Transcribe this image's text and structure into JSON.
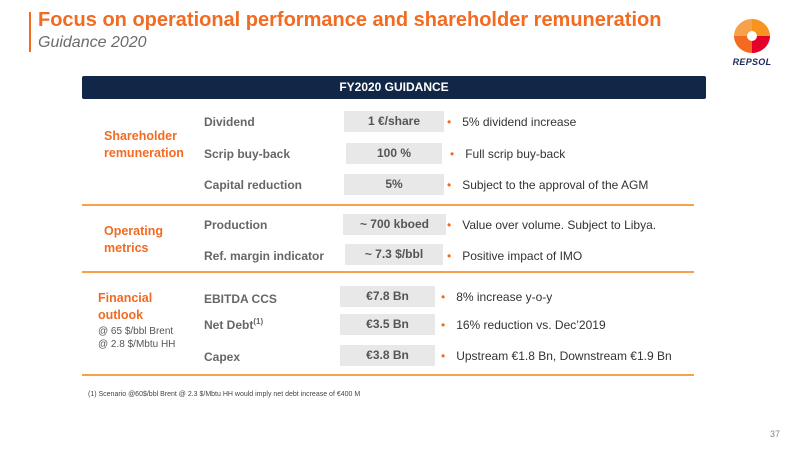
{
  "header": {
    "title": "Focus on operational performance and shareholder remuneration",
    "subtitle": "Guidance 2020",
    "logo_text": "REPSOL"
  },
  "table": {
    "heading": "FY2020 GUIDANCE",
    "groups": [
      {
        "title_lines": [
          "Shareholder",
          "remuneration"
        ],
        "notes": [],
        "rows": [
          {
            "metric": "Dividend",
            "value": "1 €/share",
            "comment": "5% dividend increase"
          },
          {
            "metric": "Scrip buy-back",
            "value": "100 %",
            "comment": "Full scrip buy-back"
          },
          {
            "metric": "Capital reduction",
            "value": "5%",
            "comment": "Subject to the approval of the AGM"
          }
        ]
      },
      {
        "title_lines": [
          "Operating",
          "metrics"
        ],
        "notes": [],
        "rows": [
          {
            "metric": "Production",
            "value": "~ 700 kboed",
            "comment": "Value over volume. Subject to Libya."
          },
          {
            "metric": "Ref. margin indicator",
            "value": "~ 7.3 $/bbl",
            "comment": "Positive impact of IMO"
          }
        ]
      },
      {
        "title_lines": [
          "Financial",
          "outlook"
        ],
        "notes": [
          "@ 65 $/bbl Brent",
          "@ 2.8 $/Mbtu HH"
        ],
        "rows": [
          {
            "metric": "EBITDA CCS",
            "metric_sup": "",
            "value": "€7.8 Bn",
            "comment": "8% increase y-o-y"
          },
          {
            "metric": "Net Debt",
            "metric_sup": "(1)",
            "value": "€3.5 Bn",
            "comment": "16% reduction vs. Dec’2019"
          },
          {
            "metric": "Capex",
            "metric_sup": "",
            "value": "€3.8 Bn",
            "comment": "Upstream €1.8 Bn, Downstream €1.9 Bn"
          }
        ]
      }
    ]
  },
  "footnote": "(1) Scenario @60$/bbl Brent @ 2.3 $/Mbtu HH would imply net debt increase of €400 M",
  "page_number": "37",
  "colors": {
    "accent_orange": "#f26b21",
    "navy": "#112748",
    "divider": "#f7a24b",
    "value_box": "#e8e8e8"
  }
}
